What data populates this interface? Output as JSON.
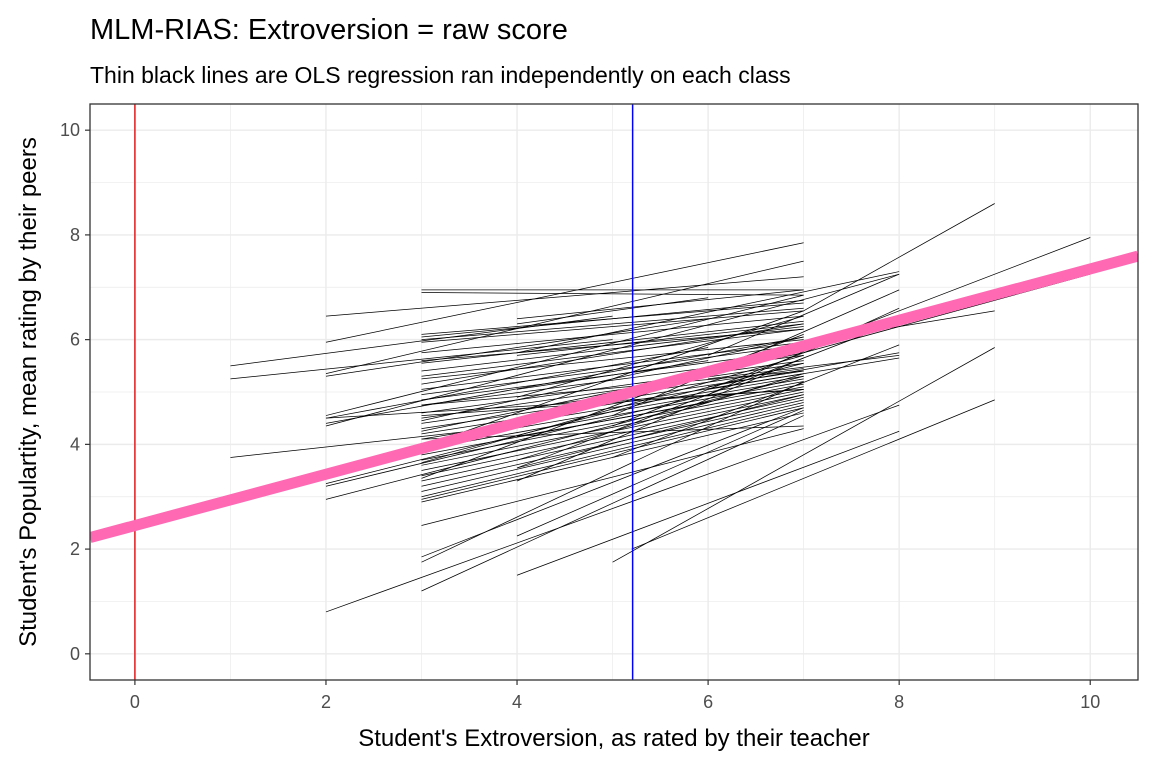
{
  "chart_data": {
    "type": "line",
    "title": "MLM-RIAS: Extroversion = raw score",
    "subtitle": "Thin black lines are OLS regression ran independently on each class",
    "xlabel": "Student's Extroversion, as rated by their teacher",
    "ylabel": "Student's Populartity, mean rating by their peers",
    "xlim": [
      -0.47,
      10.5
    ],
    "ylim": [
      -0.5,
      10.5
    ],
    "x_ticks": [
      0,
      2,
      4,
      6,
      8,
      10
    ],
    "y_ticks": [
      0,
      2,
      4,
      6,
      8,
      10
    ],
    "grid": true,
    "legend": "none",
    "reference_lines": {
      "vertical_zero": {
        "x": 0,
        "color": "#e41a1c"
      },
      "vertical_mean": {
        "x": 5.21,
        "color": "#0000ff"
      }
    },
    "overall_fit": {
      "intercept": 2.45,
      "slope": 0.49,
      "x_range": [
        -0.47,
        10.5
      ],
      "color": "#ff69b4"
    },
    "class_fits": [
      {
        "x": [
          3,
          7
        ],
        "y": [
          6.95,
          6.95
        ]
      },
      {
        "x": [
          3,
          7
        ],
        "y": [
          6.9,
          6.85
        ]
      },
      {
        "x": [
          3,
          7
        ],
        "y": [
          6.05,
          6.75
        ]
      },
      {
        "x": [
          3,
          7
        ],
        "y": [
          6.1,
          6.7
        ]
      },
      {
        "x": [
          3,
          7
        ],
        "y": [
          6.0,
          6.6
        ]
      },
      {
        "x": [
          3,
          7
        ],
        "y": [
          5.95,
          6.55
        ]
      },
      {
        "x": [
          3,
          7
        ],
        "y": [
          5.75,
          6.45
        ]
      },
      {
        "x": [
          3,
          7
        ],
        "y": [
          5.55,
          6.35
        ]
      },
      {
        "x": [
          3,
          7
        ],
        "y": [
          5.4,
          6.25
        ]
      },
      {
        "x": [
          3,
          7
        ],
        "y": [
          5.3,
          6.2
        ]
      },
      {
        "x": [
          3,
          7
        ],
        "y": [
          5.25,
          6.0
        ]
      },
      {
        "x": [
          3,
          7
        ],
        "y": [
          5.05,
          5.95
        ]
      },
      {
        "x": [
          3,
          7
        ],
        "y": [
          4.95,
          5.9
        ]
      },
      {
        "x": [
          3,
          7
        ],
        "y": [
          4.85,
          5.8
        ]
      },
      {
        "x": [
          3,
          7
        ],
        "y": [
          4.75,
          5.7
        ]
      },
      {
        "x": [
          3,
          7
        ],
        "y": [
          4.6,
          5.6
        ]
      },
      {
        "x": [
          3,
          7
        ],
        "y": [
          4.5,
          5.55
        ]
      },
      {
        "x": [
          3,
          7
        ],
        "y": [
          4.4,
          5.45
        ]
      },
      {
        "x": [
          3,
          7
        ],
        "y": [
          4.3,
          5.4
        ]
      },
      {
        "x": [
          3,
          7
        ],
        "y": [
          4.2,
          5.35
        ]
      },
      {
        "x": [
          3,
          7
        ],
        "y": [
          4.1,
          5.3
        ]
      },
      {
        "x": [
          3,
          7
        ],
        "y": [
          4.0,
          5.25
        ]
      },
      {
        "x": [
          3,
          7
        ],
        "y": [
          3.9,
          5.2
        ]
      },
      {
        "x": [
          3,
          7
        ],
        "y": [
          3.8,
          5.15
        ]
      },
      {
        "x": [
          3,
          7
        ],
        "y": [
          3.7,
          5.1
        ]
      },
      {
        "x": [
          3,
          7
        ],
        "y": [
          3.6,
          5.05
        ]
      },
      {
        "x": [
          3,
          7
        ],
        "y": [
          3.5,
          5.0
        ]
      },
      {
        "x": [
          3,
          7
        ],
        "y": [
          3.4,
          4.95
        ]
      },
      {
        "x": [
          3,
          7
        ],
        "y": [
          3.3,
          4.9
        ]
      },
      {
        "x": [
          3,
          7
        ],
        "y": [
          3.2,
          4.85
        ]
      },
      {
        "x": [
          3,
          7
        ],
        "y": [
          3.1,
          4.8
        ]
      },
      {
        "x": [
          3,
          7
        ],
        "y": [
          3.0,
          4.75
        ]
      },
      {
        "x": [
          3,
          7
        ],
        "y": [
          2.95,
          4.7
        ]
      },
      {
        "x": [
          3,
          7
        ],
        "y": [
          2.9,
          4.6
        ]
      },
      {
        "x": [
          3,
          7
        ],
        "y": [
          2.45,
          4.3
        ]
      },
      {
        "x": [
          3,
          7
        ],
        "y": [
          1.85,
          4.7
        ]
      },
      {
        "x": [
          3,
          7
        ],
        "y": [
          1.75,
          5.2
        ]
      },
      {
        "x": [
          3,
          7
        ],
        "y": [
          1.2,
          4.55
        ]
      },
      {
        "x": [
          3,
          7
        ],
        "y": [
          4.1,
          4.35
        ]
      },
      {
        "x": [
          3,
          7
        ],
        "y": [
          4.75,
          5.4
        ]
      },
      {
        "x": [
          3,
          7
        ],
        "y": [
          5.15,
          6.3
        ]
      },
      {
        "x": [
          3,
          7
        ],
        "y": [
          4.45,
          6.05
        ]
      },
      {
        "x": [
          3,
          7
        ],
        "y": [
          3.65,
          5.7
        ]
      },
      {
        "x": [
          3,
          7
        ],
        "y": [
          3.35,
          6.1
        ]
      },
      {
        "x": [
          3,
          7
        ],
        "y": [
          3.95,
          6.55
        ]
      },
      {
        "x": [
          3,
          7
        ],
        "y": [
          4.55,
          5.05
        ]
      },
      {
        "x": [
          3,
          7
        ],
        "y": [
          5.6,
          6.2
        ]
      },
      {
        "x": [
          3,
          7
        ],
        "y": [
          4.25,
          5.75
        ]
      },
      {
        "x": [
          4,
          7
        ],
        "y": [
          3.3,
          5.65
        ]
      },
      {
        "x": [
          4,
          7
        ],
        "y": [
          2.25,
          4.65
        ]
      },
      {
        "x": [
          4,
          7
        ],
        "y": [
          3.7,
          5.35
        ]
      },
      {
        "x": [
          4,
          7
        ],
        "y": [
          4.4,
          5.9
        ]
      },
      {
        "x": [
          4,
          7
        ],
        "y": [
          5.7,
          6.3
        ]
      },
      {
        "x": [
          4,
          7
        ],
        "y": [
          4.9,
          6.45
        ]
      },
      {
        "x": [
          4,
          7
        ],
        "y": [
          3.55,
          4.95
        ]
      },
      {
        "x": [
          4,
          7
        ],
        "y": [
          6.4,
          6.95
        ]
      },
      {
        "x": [
          4,
          6
        ],
        "y": [
          6.3,
          6.8
        ]
      },
      {
        "x": [
          4,
          6
        ],
        "y": [
          4.15,
          4.8
        ]
      },
      {
        "x": [
          4,
          6
        ],
        "y": [
          5.05,
          5.6
        ]
      },
      {
        "x": [
          2,
          7
        ],
        "y": [
          5.95,
          7.85
        ]
      },
      {
        "x": [
          2,
          7
        ],
        "y": [
          5.35,
          7.5
        ]
      },
      {
        "x": [
          2,
          7
        ],
        "y": [
          6.45,
          7.2
        ]
      },
      {
        "x": [
          2,
          7
        ],
        "y": [
          4.55,
          6.85
        ]
      },
      {
        "x": [
          2,
          7
        ],
        "y": [
          4.4,
          6.05
        ]
      },
      {
        "x": [
          2,
          7
        ],
        "y": [
          3.25,
          5.55
        ]
      },
      {
        "x": [
          2,
          7
        ],
        "y": [
          2.95,
          5.3
        ]
      },
      {
        "x": [
          2,
          7
        ],
        "y": [
          4.5,
          5.05
        ]
      },
      {
        "x": [
          2,
          6
        ],
        "y": [
          5.3,
          6.4
        ]
      },
      {
        "x": [
          2,
          6
        ],
        "y": [
          4.5,
          5.85
        ]
      },
      {
        "x": [
          2,
          6
        ],
        "y": [
          3.2,
          4.95
        ]
      },
      {
        "x": [
          2,
          8
        ],
        "y": [
          0.8,
          4.75
        ]
      },
      {
        "x": [
          2,
          8
        ],
        "y": [
          4.35,
          7.25
        ]
      },
      {
        "x": [
          1,
          5
        ],
        "y": [
          5.5,
          6.45
        ]
      },
      {
        "x": [
          1,
          5
        ],
        "y": [
          5.25,
          6.0
        ]
      },
      {
        "x": [
          1,
          4
        ],
        "y": [
          3.75,
          4.35
        ]
      },
      {
        "x": [
          4,
          8
        ],
        "y": [
          1.5,
          4.25
        ]
      },
      {
        "x": [
          4,
          8
        ],
        "y": [
          3.55,
          6.35
        ]
      },
      {
        "x": [
          4,
          8
        ],
        "y": [
          5.75,
          7.3
        ]
      },
      {
        "x": [
          5,
          8
        ],
        "y": [
          4.35,
          6.45
        ]
      },
      {
        "x": [
          5,
          8
        ],
        "y": [
          3.75,
          5.9
        ]
      },
      {
        "x": [
          5,
          8
        ],
        "y": [
          4.55,
          6.95
        ]
      },
      {
        "x": [
          6,
          8
        ],
        "y": [
          5.25,
          5.7
        ]
      },
      {
        "x": [
          6,
          8
        ],
        "y": [
          5.05,
          5.65
        ]
      },
      {
        "x": [
          6,
          8
        ],
        "y": [
          4.95,
          6.6
        ]
      },
      {
        "x": [
          6,
          8
        ],
        "y": [
          5.7,
          7.25
        ]
      },
      {
        "x": [
          6,
          8
        ],
        "y": [
          5.1,
          5.75
        ]
      },
      {
        "x": [
          5,
          9
        ],
        "y": [
          1.75,
          5.85
        ]
      },
      {
        "x": [
          5.2,
          9
        ],
        "y": [
          2.0,
          4.85
        ]
      },
      {
        "x": [
          7,
          9
        ],
        "y": [
          6.55,
          8.6
        ]
      },
      {
        "x": [
          7,
          10
        ],
        "y": [
          5.85,
          7.95
        ]
      },
      {
        "x": [
          7,
          10
        ],
        "y": [
          5.75,
          7.25
        ]
      },
      {
        "x": [
          7,
          9
        ],
        "y": [
          5.95,
          6.55
        ]
      }
    ]
  }
}
